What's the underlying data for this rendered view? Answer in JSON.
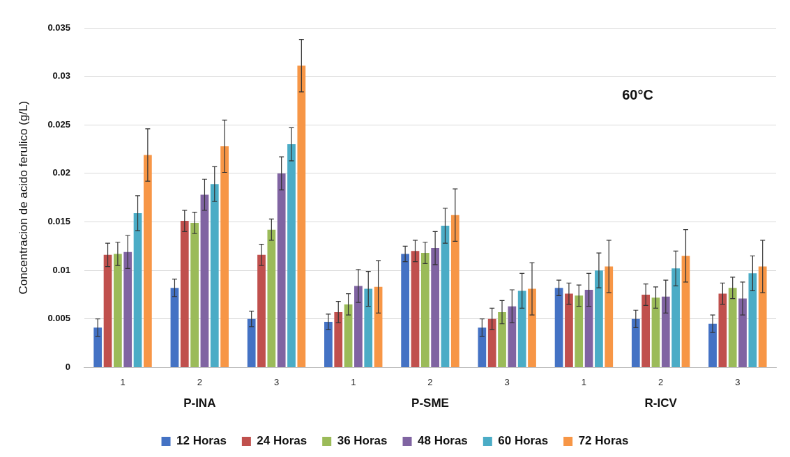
{
  "chart_data": {
    "type": "bar",
    "ylabel": "Concentracion de acido ferulico (g/L)",
    "categories": [
      "1",
      "2",
      "3",
      "1",
      "2",
      "3",
      "1",
      "2",
      "3"
    ],
    "annotations": [
      "P-INA",
      "P-SME",
      "R-ICV",
      "60°C"
    ],
    "ylim": [
      0,
      0.035
    ],
    "yticks": [
      0,
      0.005,
      0.01,
      0.015,
      0.02,
      0.025,
      0.03,
      0.035
    ],
    "grid": "y",
    "legend": "bottom",
    "series": [
      {
        "name": "12 Horas",
        "color": "#4472c4",
        "values": [
          0.0041,
          0.0082,
          0.005,
          0.0047,
          0.0117,
          0.0041,
          0.0082,
          0.005,
          0.0045
        ],
        "errors": [
          0.0009,
          0.0009,
          0.0008,
          0.0008,
          0.0008,
          0.0009,
          0.0008,
          0.0009,
          0.0009
        ]
      },
      {
        "name": "24 Horas",
        "color": "#c0504d",
        "values": [
          0.0116,
          0.0151,
          0.0116,
          0.0057,
          0.012,
          0.005,
          0.0076,
          0.0075,
          0.0076
        ],
        "errors": [
          0.0012,
          0.0011,
          0.0011,
          0.0011,
          0.0011,
          0.0011,
          0.0011,
          0.0011,
          0.0011
        ]
      },
      {
        "name": "36 Horas",
        "color": "#9bbb59",
        "values": [
          0.0117,
          0.0149,
          0.0142,
          0.0065,
          0.0118,
          0.0057,
          0.0074,
          0.0072,
          0.0082
        ],
        "errors": [
          0.0012,
          0.0011,
          0.0011,
          0.0011,
          0.0011,
          0.0012,
          0.0011,
          0.0011,
          0.0011
        ]
      },
      {
        "name": "48 Horas",
        "color": "#8064a2",
        "values": [
          0.0119,
          0.0178,
          0.02,
          0.0084,
          0.0123,
          0.0063,
          0.008,
          0.0073,
          0.0071
        ],
        "errors": [
          0.0017,
          0.0016,
          0.0017,
          0.0017,
          0.0017,
          0.0017,
          0.0017,
          0.0017,
          0.0017
        ]
      },
      {
        "name": "60 Horas",
        "color": "#4bacc6",
        "values": [
          0.0159,
          0.0189,
          0.023,
          0.0081,
          0.0146,
          0.0079,
          0.01,
          0.0102,
          0.0097
        ],
        "errors": [
          0.0018,
          0.0018,
          0.0017,
          0.0018,
          0.0018,
          0.0018,
          0.0018,
          0.0018,
          0.0018
        ]
      },
      {
        "name": "72 Horas",
        "color": "#f79646",
        "values": [
          0.0219,
          0.0228,
          0.0311,
          0.0083,
          0.0157,
          0.0081,
          0.0104,
          0.0115,
          0.0104
        ],
        "errors": [
          0.0027,
          0.0027,
          0.0027,
          0.0027,
          0.0027,
          0.0027,
          0.0027,
          0.0027,
          0.0027
        ]
      }
    ]
  }
}
